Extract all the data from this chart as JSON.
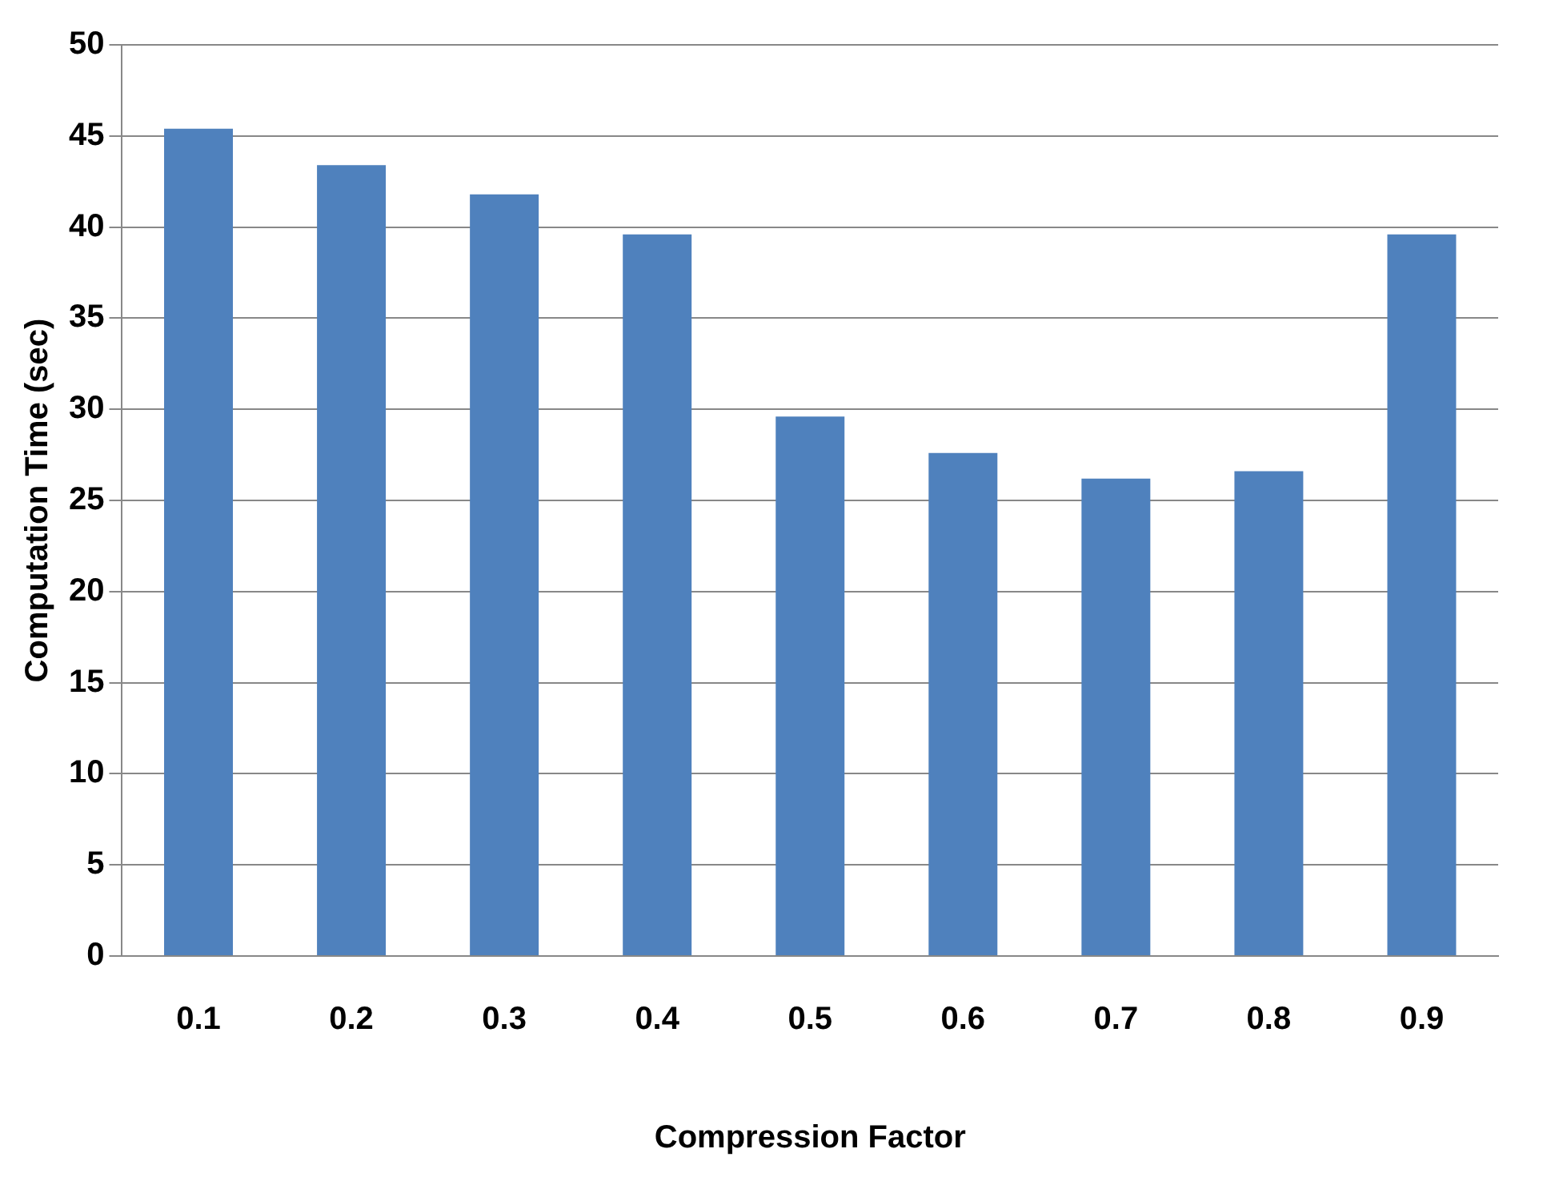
{
  "chart_data": {
    "type": "bar",
    "xlabel": "Compression Factor",
    "ylabel": "Computation Time (sec)",
    "categories": [
      "0.1",
      "0.2",
      "0.3",
      "0.4",
      "0.5",
      "0.6",
      "0.7",
      "0.8",
      "0.9"
    ],
    "values": [
      45.4,
      43.4,
      41.8,
      39.6,
      29.6,
      27.6,
      26.2,
      26.6,
      39.6
    ],
    "color": "#4f81bd",
    "ylim": [
      0,
      50
    ],
    "yticks": [
      0,
      5,
      10,
      15,
      20,
      25,
      30,
      35,
      40,
      45,
      50
    ],
    "grid": "y"
  }
}
